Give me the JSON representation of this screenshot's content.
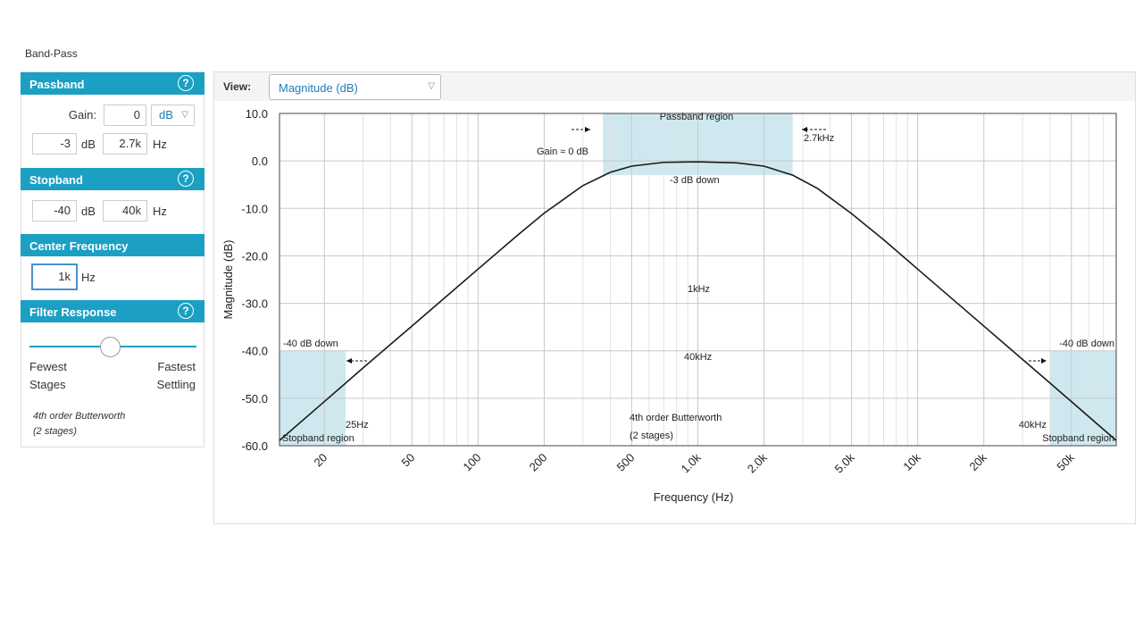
{
  "header": {
    "title": "Band-Pass"
  },
  "passband": {
    "title": "Passband",
    "help": "?",
    "gain_label": "Gain:",
    "gain": "0",
    "gain_unit": "dB",
    "cutoff_gain": "-3",
    "cutoff_gain_unit": "dB",
    "cutoff_freq": "2.7k",
    "cutoff_freq_unit": "Hz"
  },
  "stopband": {
    "title": "Stopband",
    "help": "?",
    "gain": "-40",
    "gain_unit": "dB",
    "freq": "40k",
    "freq_unit": "Hz"
  },
  "center_frequency": {
    "title": "Center Frequency",
    "value": "1k",
    "unit": "Hz"
  },
  "filter_response": {
    "title": "Filter Response",
    "help": "?",
    "left_top": "Fewest",
    "left_bottom": "Stages",
    "right_top": "Fastest",
    "right_bottom": "Settling",
    "description": "4th order Butterworth",
    "stages": "(2 stages)"
  },
  "view": {
    "label": "View:",
    "selected": "Magnitude (dB)"
  },
  "chart_data": {
    "type": "line",
    "x_label": "Frequency (Hz)",
    "y_label": "Magnitude (dB)",
    "xscale": "log",
    "xlim": [
      12.5,
      80000
    ],
    "ylim": [
      -60,
      10
    ],
    "xticks": [
      20,
      50,
      100,
      200,
      500,
      {
        "value": 1000,
        "label": "1.0k"
      },
      {
        "value": 2000,
        "label": "2.0k"
      },
      {
        "value": 5000,
        "label": "5.0k"
      },
      {
        "value": 10000,
        "label": "10k"
      },
      {
        "value": 20000,
        "label": "20k"
      },
      {
        "value": 50000,
        "label": "50k"
      }
    ],
    "xminor": [
      30,
      40,
      60,
      70,
      80,
      90,
      300,
      400,
      600,
      700,
      800,
      900,
      3000,
      4000,
      6000,
      7000,
      8000,
      9000,
      30000,
      40000,
      60000,
      70000
    ],
    "yticks": [
      {
        "value": 10,
        "label": "10.0"
      },
      {
        "value": 0,
        "label": "0.0"
      },
      {
        "value": -10,
        "label": "-10.0"
      },
      {
        "value": -20,
        "label": "-20.0"
      },
      {
        "value": -30,
        "label": "-30.0"
      },
      {
        "value": -40,
        "label": "-40.0"
      },
      {
        "value": -50,
        "label": "-50.0"
      },
      {
        "value": -60,
        "label": "-60.0"
      }
    ],
    "grid": true,
    "color": "#1a1a1a",
    "region_color": "#cfe8ef",
    "x": [
      12.5,
      20,
      30,
      50,
      100,
      150,
      200,
      300,
      400,
      500,
      700,
      1000,
      1500,
      2000,
      2700,
      3500,
      5000,
      7000,
      10000,
      20000,
      40000,
      80000
    ],
    "values": [
      -58.9,
      -50.7,
      -43.6,
      -34.8,
      -22.8,
      -15.8,
      -11.0,
      -5.2,
      -2.4,
      -1.1,
      -0.3,
      -0.2,
      -0.4,
      -1.1,
      -3.0,
      -5.8,
      -11.1,
      -16.6,
      -22.8,
      -34.8,
      -46.8,
      -58.9
    ],
    "regions": [
      {
        "x": [
          370,
          2700
        ],
        "y": [
          -3,
          10
        ]
      },
      {
        "x": [
          12.5,
          25
        ],
        "y": [
          -60,
          -40
        ]
      },
      {
        "x": [
          40000,
          80000
        ],
        "y": [
          -60,
          -40
        ]
      }
    ],
    "annotations": [
      "Passband region",
      "Gain ≈ 0 dB",
      "2.7kHz",
      "-3 dB down",
      "1kHz",
      "40kHz",
      "4th order Butterworth",
      "(2 stages)",
      "-40 dB down",
      "-40 dB down",
      "25Hz",
      "40kHz",
      "Stopband region",
      "Stopband region"
    ]
  }
}
